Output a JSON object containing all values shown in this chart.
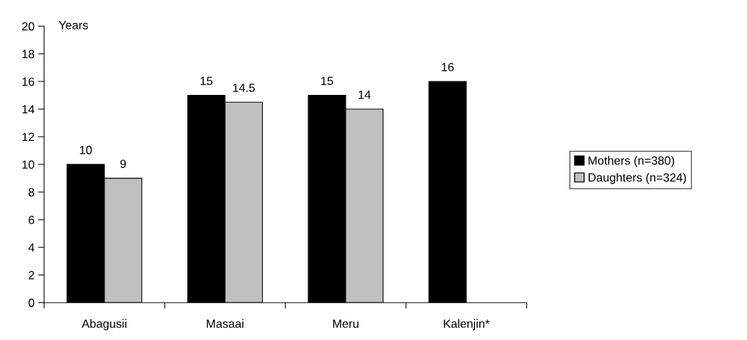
{
  "chart_data": {
    "type": "bar",
    "ylabel": "Years",
    "categories": [
      "Abagusii",
      "Masaai",
      "Meru",
      "Kalenjin*"
    ],
    "series": [
      {
        "name": "Mothers (n=380)",
        "color": "#000000",
        "values": [
          10,
          15,
          15,
          16
        ]
      },
      {
        "name": "Daughters (n=324)",
        "color": "#c0c0c0",
        "values": [
          9,
          14.5,
          14,
          null
        ]
      }
    ],
    "ylim": [
      0,
      20
    ],
    "yticks": [
      0,
      2,
      4,
      6,
      8,
      10,
      12,
      14,
      16,
      18,
      20
    ],
    "data_labels": true,
    "legend": "right",
    "grid": false
  }
}
